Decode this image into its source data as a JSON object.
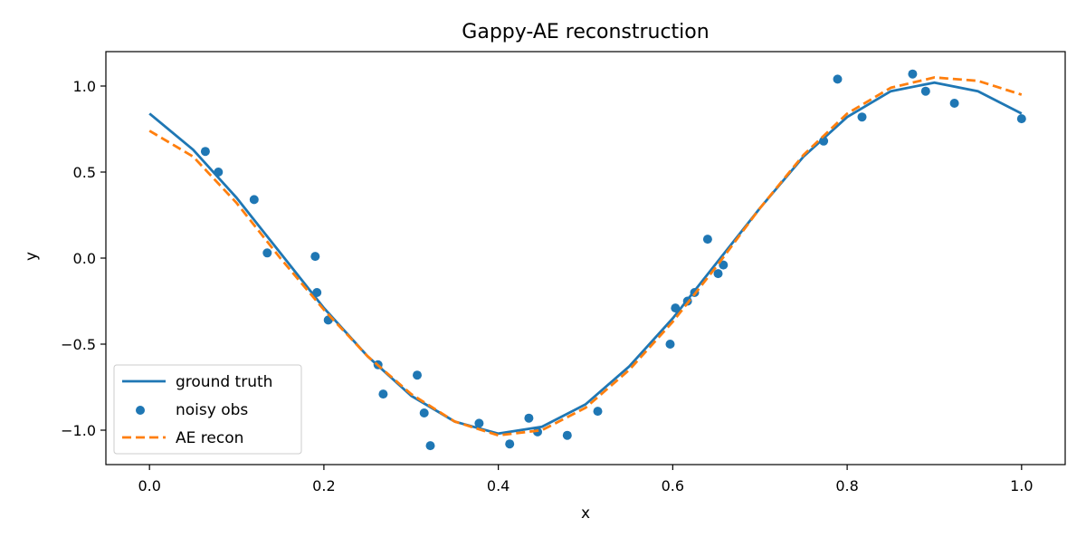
{
  "chart_data": {
    "type": "line",
    "title": "Gappy-AE reconstruction",
    "xlabel": "x",
    "ylabel": "y",
    "xlim": [
      -0.05,
      1.05
    ],
    "ylim": [
      -1.2,
      1.2
    ],
    "grid": false,
    "legend_position": "lower-left",
    "x_ticks": [
      {
        "value": 0.0,
        "label": "0.0"
      },
      {
        "value": 0.2,
        "label": "0.2"
      },
      {
        "value": 0.4,
        "label": "0.4"
      },
      {
        "value": 0.6,
        "label": "0.6"
      },
      {
        "value": 0.8,
        "label": "0.8"
      },
      {
        "value": 1.0,
        "label": "1.0"
      }
    ],
    "y_ticks": [
      {
        "value": -1.0,
        "label": "−1.0"
      },
      {
        "value": -0.5,
        "label": "−0.5"
      },
      {
        "value": 0.0,
        "label": "0.0"
      },
      {
        "value": 0.5,
        "label": "0.5"
      },
      {
        "value": 1.0,
        "label": "1.0"
      }
    ],
    "series": [
      {
        "name": "ground truth",
        "kind": "line",
        "style": "solid",
        "color": "#1f77b4",
        "x": [
          0.0,
          0.05,
          0.1,
          0.15,
          0.2,
          0.25,
          0.3,
          0.35,
          0.4,
          0.45,
          0.5,
          0.55,
          0.6,
          0.65,
          0.7,
          0.75,
          0.8,
          0.85,
          0.9,
          0.95,
          1.0
        ],
        "y": [
          0.84,
          0.63,
          0.35,
          0.03,
          -0.29,
          -0.57,
          -0.8,
          -0.95,
          -1.02,
          -0.98,
          -0.85,
          -0.63,
          -0.35,
          -0.03,
          0.29,
          0.59,
          0.82,
          0.97,
          1.02,
          0.97,
          0.84
        ]
      },
      {
        "name": "noisy obs",
        "kind": "scatter",
        "color": "#1f77b4",
        "x": [
          0.064,
          0.079,
          0.12,
          0.135,
          0.19,
          0.192,
          0.205,
          0.262,
          0.268,
          0.307,
          0.315,
          0.322,
          0.378,
          0.413,
          0.435,
          0.445,
          0.479,
          0.514,
          0.597,
          0.603,
          0.617,
          0.625,
          0.64,
          0.652,
          0.658,
          0.773,
          0.789,
          0.817,
          0.875,
          0.89,
          0.923,
          1.0
        ],
        "y": [
          0.62,
          0.5,
          0.34,
          0.03,
          0.01,
          -0.2,
          -0.36,
          -0.62,
          -0.79,
          -0.68,
          -0.9,
          -1.09,
          -0.96,
          -1.08,
          -0.93,
          -1.01,
          -1.03,
          -0.89,
          -0.5,
          -0.29,
          -0.25,
          -0.2,
          0.11,
          -0.09,
          -0.04,
          0.68,
          1.04,
          0.82,
          1.07,
          0.97,
          0.9,
          0.81
        ]
      },
      {
        "name": "AE recon",
        "kind": "line",
        "style": "dashed",
        "color": "#ff7f0e",
        "x": [
          0.0,
          0.05,
          0.1,
          0.15,
          0.2,
          0.25,
          0.3,
          0.35,
          0.4,
          0.45,
          0.5,
          0.55,
          0.6,
          0.65,
          0.7,
          0.75,
          0.8,
          0.85,
          0.9,
          0.95,
          1.0
        ],
        "y": [
          0.74,
          0.59,
          0.32,
          0.0,
          -0.3,
          -0.57,
          -0.79,
          -0.95,
          -1.03,
          -1.0,
          -0.87,
          -0.65,
          -0.37,
          -0.05,
          0.29,
          0.6,
          0.84,
          0.99,
          1.05,
          1.03,
          0.95
        ]
      }
    ]
  }
}
